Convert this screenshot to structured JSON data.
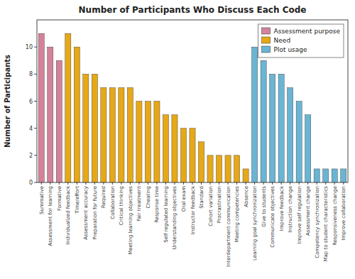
{
  "chart_data": {
    "type": "bar",
    "title": "Number of Participants Who Discuss Each Code",
    "ylabel": "Number of Participants",
    "categories": [
      "Summative",
      "Assessment for learning",
      "Formative",
      "Individualized feedback",
      "Time/effort",
      "Assessment accuracy",
      "Preparation for future",
      "Required",
      "Collaboration",
      "Critical thinking",
      "Meeting learning objectives",
      "Fair treatment",
      "Cheating",
      "Response time",
      "Self regulated learning",
      "Understanding objectives",
      "Oral exam",
      "Instructor feedback",
      "Standard",
      "Cohort variation",
      "Procrastination",
      "Interdepartment communication",
      "Meeting competencies",
      "Absence",
      "Learning goal synchronization",
      "Give to students",
      "Communicate objectives",
      "Improve feedback",
      "Instruction change",
      "Improve self regulation",
      "Assessment change",
      "Competency synchronization",
      "Map to student characteristics",
      "Responsiveness change",
      "Improve collaboration"
    ],
    "series": [
      {
        "name": "Assessment purpose",
        "color": "#d4829a",
        "values": [
          11,
          10,
          9,
          null,
          null,
          null,
          null,
          null,
          null,
          null,
          null,
          null,
          null,
          null,
          null,
          null,
          null,
          null,
          null,
          null,
          null,
          null,
          null,
          null,
          null,
          null,
          null,
          null,
          null,
          null,
          null,
          null,
          null,
          null,
          null
        ]
      },
      {
        "name": "Need",
        "color": "#e6a817",
        "values": [
          null,
          null,
          null,
          11,
          10,
          8,
          8,
          7,
          7,
          7,
          7,
          6,
          6,
          6,
          5,
          5,
          4,
          4,
          3,
          2,
          2,
          2,
          2,
          1,
          null,
          null,
          null,
          null,
          null,
          null,
          null,
          null,
          null,
          null,
          null
        ]
      },
      {
        "name": "Plot usage",
        "color": "#6ab4d4",
        "values": [
          null,
          null,
          null,
          null,
          null,
          null,
          null,
          null,
          null,
          null,
          null,
          null,
          null,
          null,
          null,
          null,
          null,
          null,
          null,
          null,
          null,
          null,
          null,
          null,
          10,
          9,
          8,
          8,
          7,
          6,
          5,
          1,
          1,
          1,
          1
        ]
      }
    ],
    "ylim": [
      0,
      12
    ],
    "yticks": [
      0,
      2,
      4,
      6,
      8,
      10
    ],
    "legend": "upper right",
    "grid": false
  }
}
